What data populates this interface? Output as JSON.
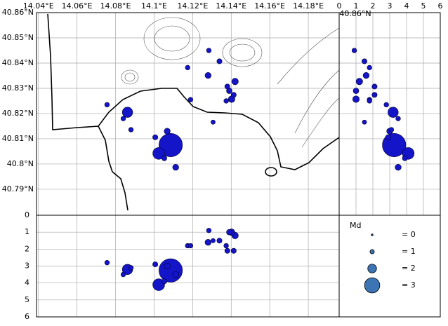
{
  "chart_data": {
    "type": "scatter",
    "xlim": [
      14.039,
      14.196
    ],
    "ylim": [
      40.7797,
      40.86
    ],
    "xticks": [
      {
        "value": 14.04,
        "label": "14.04°E"
      },
      {
        "value": 14.06,
        "label": "14.06°E"
      },
      {
        "value": 14.08,
        "label": "14.08°E"
      },
      {
        "value": 14.1,
        "label": "14.1°E"
      },
      {
        "value": 14.12,
        "label": "14.12°E"
      },
      {
        "value": 14.14,
        "label": "14.14°E"
      },
      {
        "value": 14.16,
        "label": "14.16°E"
      },
      {
        "value": 14.18,
        "label": "14.18°E"
      }
    ],
    "yticks": [
      {
        "value": 40.86,
        "label": "40.86°N"
      },
      {
        "value": 40.85,
        "label": "40.85°N"
      },
      {
        "value": 40.84,
        "label": "40.84°N"
      },
      {
        "value": 40.83,
        "label": "40.83°N"
      },
      {
        "value": 40.82,
        "label": "40.82°N"
      },
      {
        "value": 40.81,
        "label": "40.81°N"
      },
      {
        "value": 40.8,
        "label": "40.8°N"
      },
      {
        "value": 40.79,
        "label": "40.79°N"
      }
    ],
    "depth_lim": [
      0,
      6
    ],
    "depth_ticks": [
      0,
      1,
      2,
      3,
      4,
      5,
      6
    ],
    "color": "#1414c8",
    "grid": true,
    "legend_title": "Md",
    "legend_color": "#3c74b4",
    "legend": [
      {
        "value": 0,
        "label": "= 0"
      },
      {
        "value": 1,
        "label": "= 1"
      },
      {
        "value": 2,
        "label": "= 2"
      },
      {
        "value": 3,
        "label": "= 3"
      }
    ],
    "events": {
      "lon": [
        14.1086,
        14.1024,
        14.0862,
        14.1068,
        14.1006,
        14.1053,
        14.1112,
        14.088,
        14.084,
        14.0756,
        14.1174,
        14.1189,
        14.1284,
        14.128,
        14.1339,
        14.142,
        14.1402,
        14.139,
        14.1306,
        14.138,
        14.1413,
        14.1374
      ],
      "lat": [
        40.8075,
        40.8042,
        40.8205,
        40.813,
        40.8106,
        40.8023,
        40.7987,
        40.8136,
        40.818,
        40.8235,
        40.8382,
        40.8255,
        40.845,
        40.8351,
        40.8407,
        40.8327,
        40.8257,
        40.829,
        40.8166,
        40.8307,
        40.8274,
        40.825
      ],
      "depth": [
        3.26,
        4.1,
        3.2,
        3.0,
        2.9,
        3.9,
        3.5,
        3.1,
        3.5,
        2.8,
        1.8,
        1.8,
        0.9,
        1.6,
        1.5,
        1.2,
        1.0,
        1.0,
        1.5,
        2.1,
        2.1,
        1.8
      ],
      "md": [
        3.0,
        1.8,
        1.6,
        0.9,
        0.7,
        0.7,
        0.9,
        0.6,
        0.6,
        0.6,
        0.6,
        0.6,
        0.6,
        0.9,
        0.7,
        1.0,
        1.0,
        0.8,
        0.5,
        0.7,
        0.7,
        0.6
      ]
    }
  }
}
